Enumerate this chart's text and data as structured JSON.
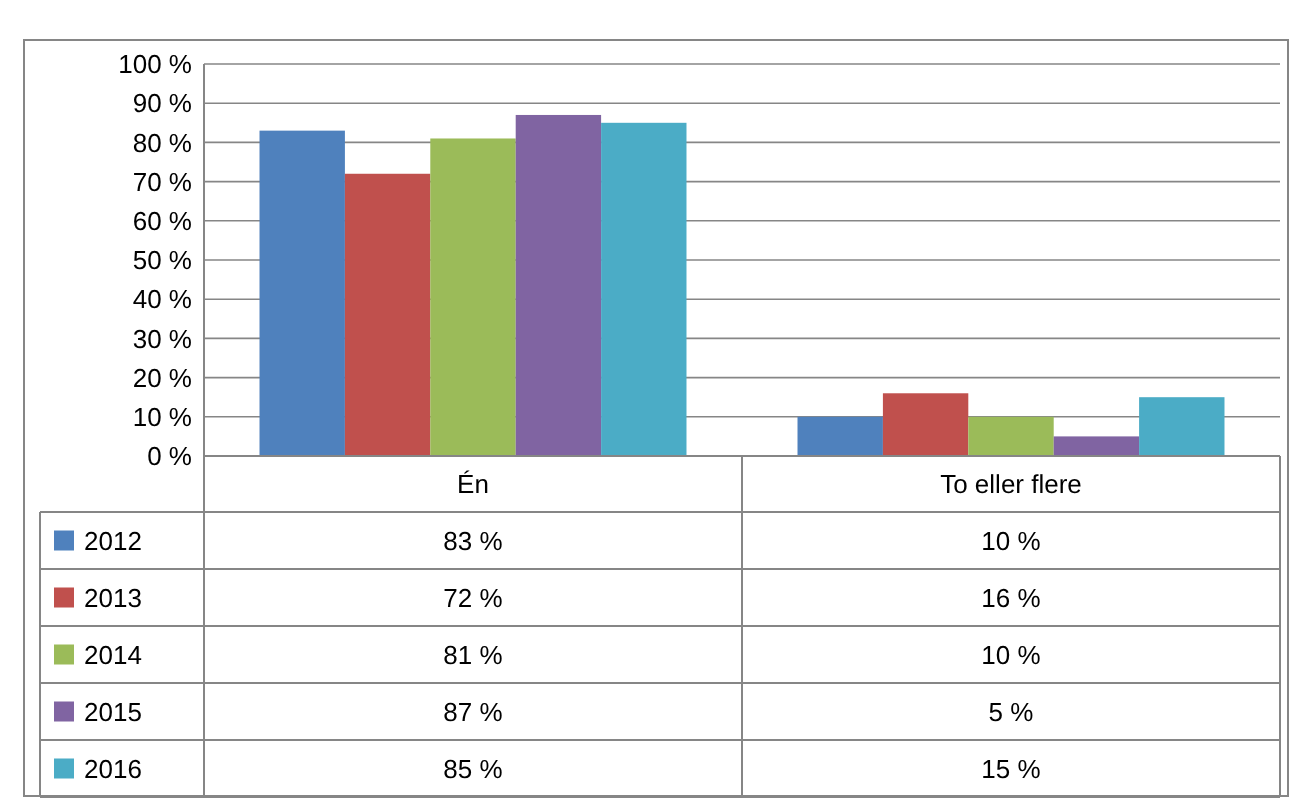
{
  "chart_data": {
    "type": "bar",
    "categories": [
      "Én",
      "To eller flere"
    ],
    "series": [
      {
        "name": "2012",
        "color": "#4f81bd",
        "values": [
          83,
          10
        ],
        "value_labels": [
          "83 %",
          "10 %"
        ]
      },
      {
        "name": "2013",
        "color": "#c0504d",
        "values": [
          72,
          16
        ],
        "value_labels": [
          "72 %",
          "16 %"
        ]
      },
      {
        "name": "2014",
        "color": "#9bbb59",
        "values": [
          81,
          10
        ],
        "value_labels": [
          "81 %",
          "10 %"
        ]
      },
      {
        "name": "2015",
        "color": "#8064a2",
        "values": [
          87,
          5
        ],
        "value_labels": [
          "87 %",
          "5 %"
        ]
      },
      {
        "name": "2016",
        "color": "#4bacc6",
        "values": [
          85,
          15
        ],
        "value_labels": [
          "85 %",
          "15 %"
        ]
      }
    ],
    "ylim": [
      0,
      100
    ],
    "yticks": [
      {
        "value": 0,
        "label": "0 %"
      },
      {
        "value": 10,
        "label": "10 %"
      },
      {
        "value": 20,
        "label": "20 %"
      },
      {
        "value": 30,
        "label": "30 %"
      },
      {
        "value": 40,
        "label": "40 %"
      },
      {
        "value": 50,
        "label": "50 %"
      },
      {
        "value": 60,
        "label": "60 %"
      },
      {
        "value": 70,
        "label": "70 %"
      },
      {
        "value": 80,
        "label": "80 %"
      },
      {
        "value": 90,
        "label": "90 %"
      },
      {
        "value": 100,
        "label": "100 %"
      }
    ],
    "grid": "y",
    "legend": "bottom left"
  }
}
